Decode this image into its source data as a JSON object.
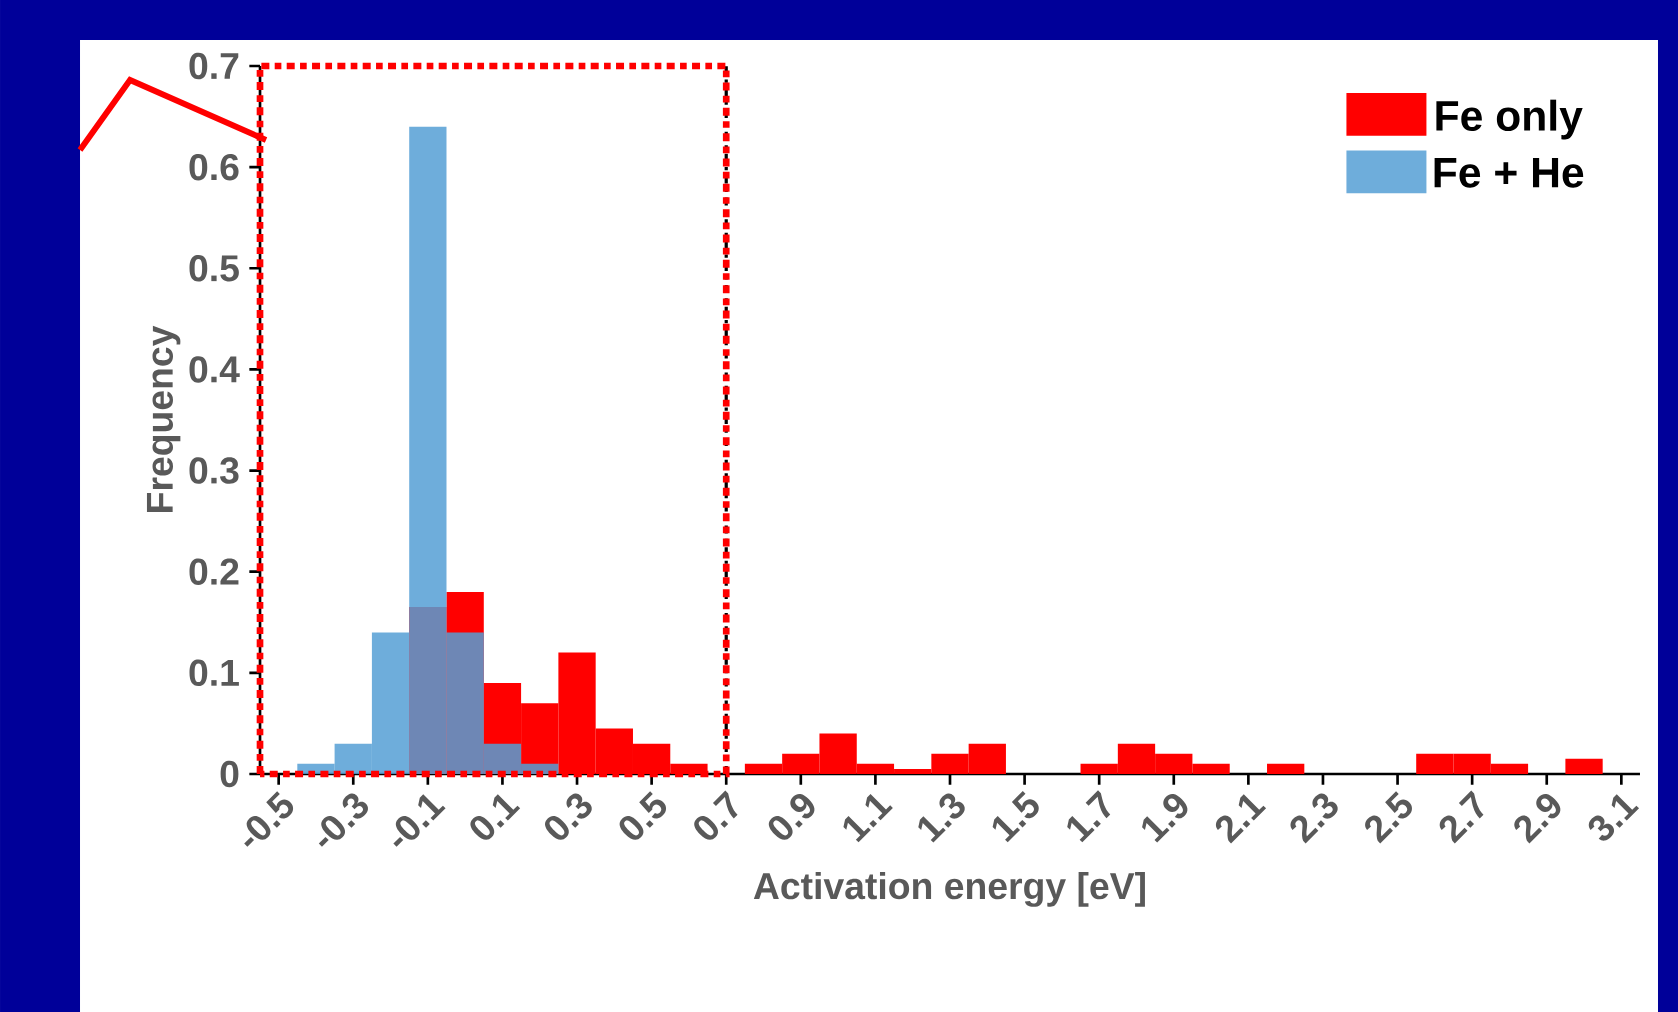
{
  "chart_data": {
    "type": "histogram",
    "xlabel": "Activation energy [eV]",
    "ylabel": "Frequency",
    "bins": [
      -0.55,
      -0.45,
      -0.35,
      -0.25,
      -0.15,
      -0.05,
      0.05,
      0.15,
      0.25,
      0.35,
      0.45,
      0.55,
      0.65,
      0.75,
      0.85,
      0.95,
      1.05,
      1.15,
      1.25,
      1.35,
      1.45,
      1.55,
      1.65,
      1.75,
      1.85,
      1.95,
      2.05,
      2.15,
      2.25,
      2.35,
      2.45,
      2.55,
      2.65,
      2.75,
      2.85,
      2.95,
      3.05,
      3.15
    ],
    "series": [
      {
        "name": "Fe only",
        "color": "#ff0000",
        "values": [
          0,
          0,
          0,
          0,
          0.165,
          0.18,
          0.09,
          0.07,
          0.12,
          0.045,
          0.03,
          0.01,
          0,
          0.01,
          0.02,
          0.04,
          0.01,
          0.005,
          0.02,
          0.03,
          0,
          0,
          0.01,
          0.03,
          0.02,
          0.01,
          0,
          0.01,
          0,
          0,
          0,
          0.02,
          0.02,
          0.01,
          0,
          0.015,
          0
        ]
      },
      {
        "name": "Fe + He",
        "color": "#559fd5",
        "values": [
          0,
          0.01,
          0.03,
          0.14,
          0.64,
          0.14,
          0.03,
          0.01,
          0,
          0,
          0,
          0,
          0,
          0,
          0,
          0,
          0,
          0,
          0,
          0,
          0,
          0,
          0,
          0,
          0,
          0,
          0,
          0,
          0,
          0,
          0,
          0,
          0,
          0,
          0,
          0,
          0
        ]
      }
    ],
    "xlim": [
      -0.55,
      3.15
    ],
    "ylim": [
      0,
      0.7
    ],
    "xticks": [
      -0.5,
      -0.3,
      -0.1,
      0.1,
      0.3,
      0.5,
      0.7,
      0.9,
      1.1,
      1.3,
      1.5,
      1.7,
      1.9,
      2.1,
      2.3,
      2.5,
      2.7,
      2.9,
      3.1
    ],
    "yticks": [
      0,
      0.1,
      0.2,
      0.3,
      0.4,
      0.5,
      0.6,
      0.7
    ],
    "legend": "top right",
    "ref_lines": [
      {
        "axis": "x",
        "value": 0.7,
        "color": "#000000",
        "line_style": "dashdot"
      }
    ]
  }
}
